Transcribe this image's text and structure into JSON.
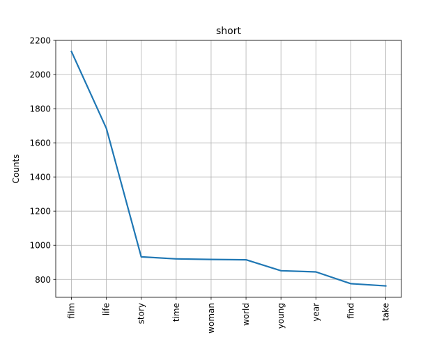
{
  "chart_data": {
    "type": "line",
    "title": "short",
    "xlabel": "",
    "ylabel": "Counts",
    "categories": [
      "film",
      "life",
      "story",
      "time",
      "woman",
      "world",
      "young",
      "year",
      "find",
      "take"
    ],
    "series": [
      {
        "values": [
          2135,
          1685,
          932,
          920,
          917,
          915,
          851,
          844,
          775,
          762
        ]
      }
    ],
    "ylim": [
      695,
      2200
    ],
    "yticks": [
      800,
      1000,
      1200,
      1400,
      1600,
      1800,
      2000,
      2200
    ],
    "grid": true,
    "colors": {
      "line": "#1f77b4",
      "grid": "#b0b0b0",
      "axes": "#000000"
    }
  }
}
